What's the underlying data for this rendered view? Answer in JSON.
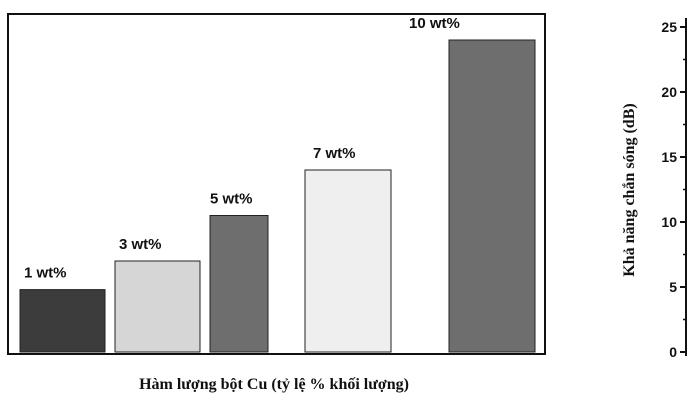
{
  "chart_data": {
    "type": "bar",
    "categories": [
      "1 wt%",
      "3 wt%",
      "5 wt%",
      "7 wt%",
      "10 wt%"
    ],
    "values": [
      4.8,
      7.0,
      10.5,
      14.0,
      24.0
    ],
    "colors": [
      "#3c3c3c",
      "#d6d6d6",
      "#6e6e6e",
      "#efefef",
      "#6e6e6e"
    ],
    "xlabel": "Hàm lượng bột Cu (tỷ lệ % khối lượng)",
    "ylabel": "Khả năng chắn sóng (dB)",
    "ylim": [
      0,
      25
    ],
    "yticks": [
      0,
      5,
      10,
      15,
      20,
      25
    ],
    "grid": false,
    "legend": "none"
  }
}
